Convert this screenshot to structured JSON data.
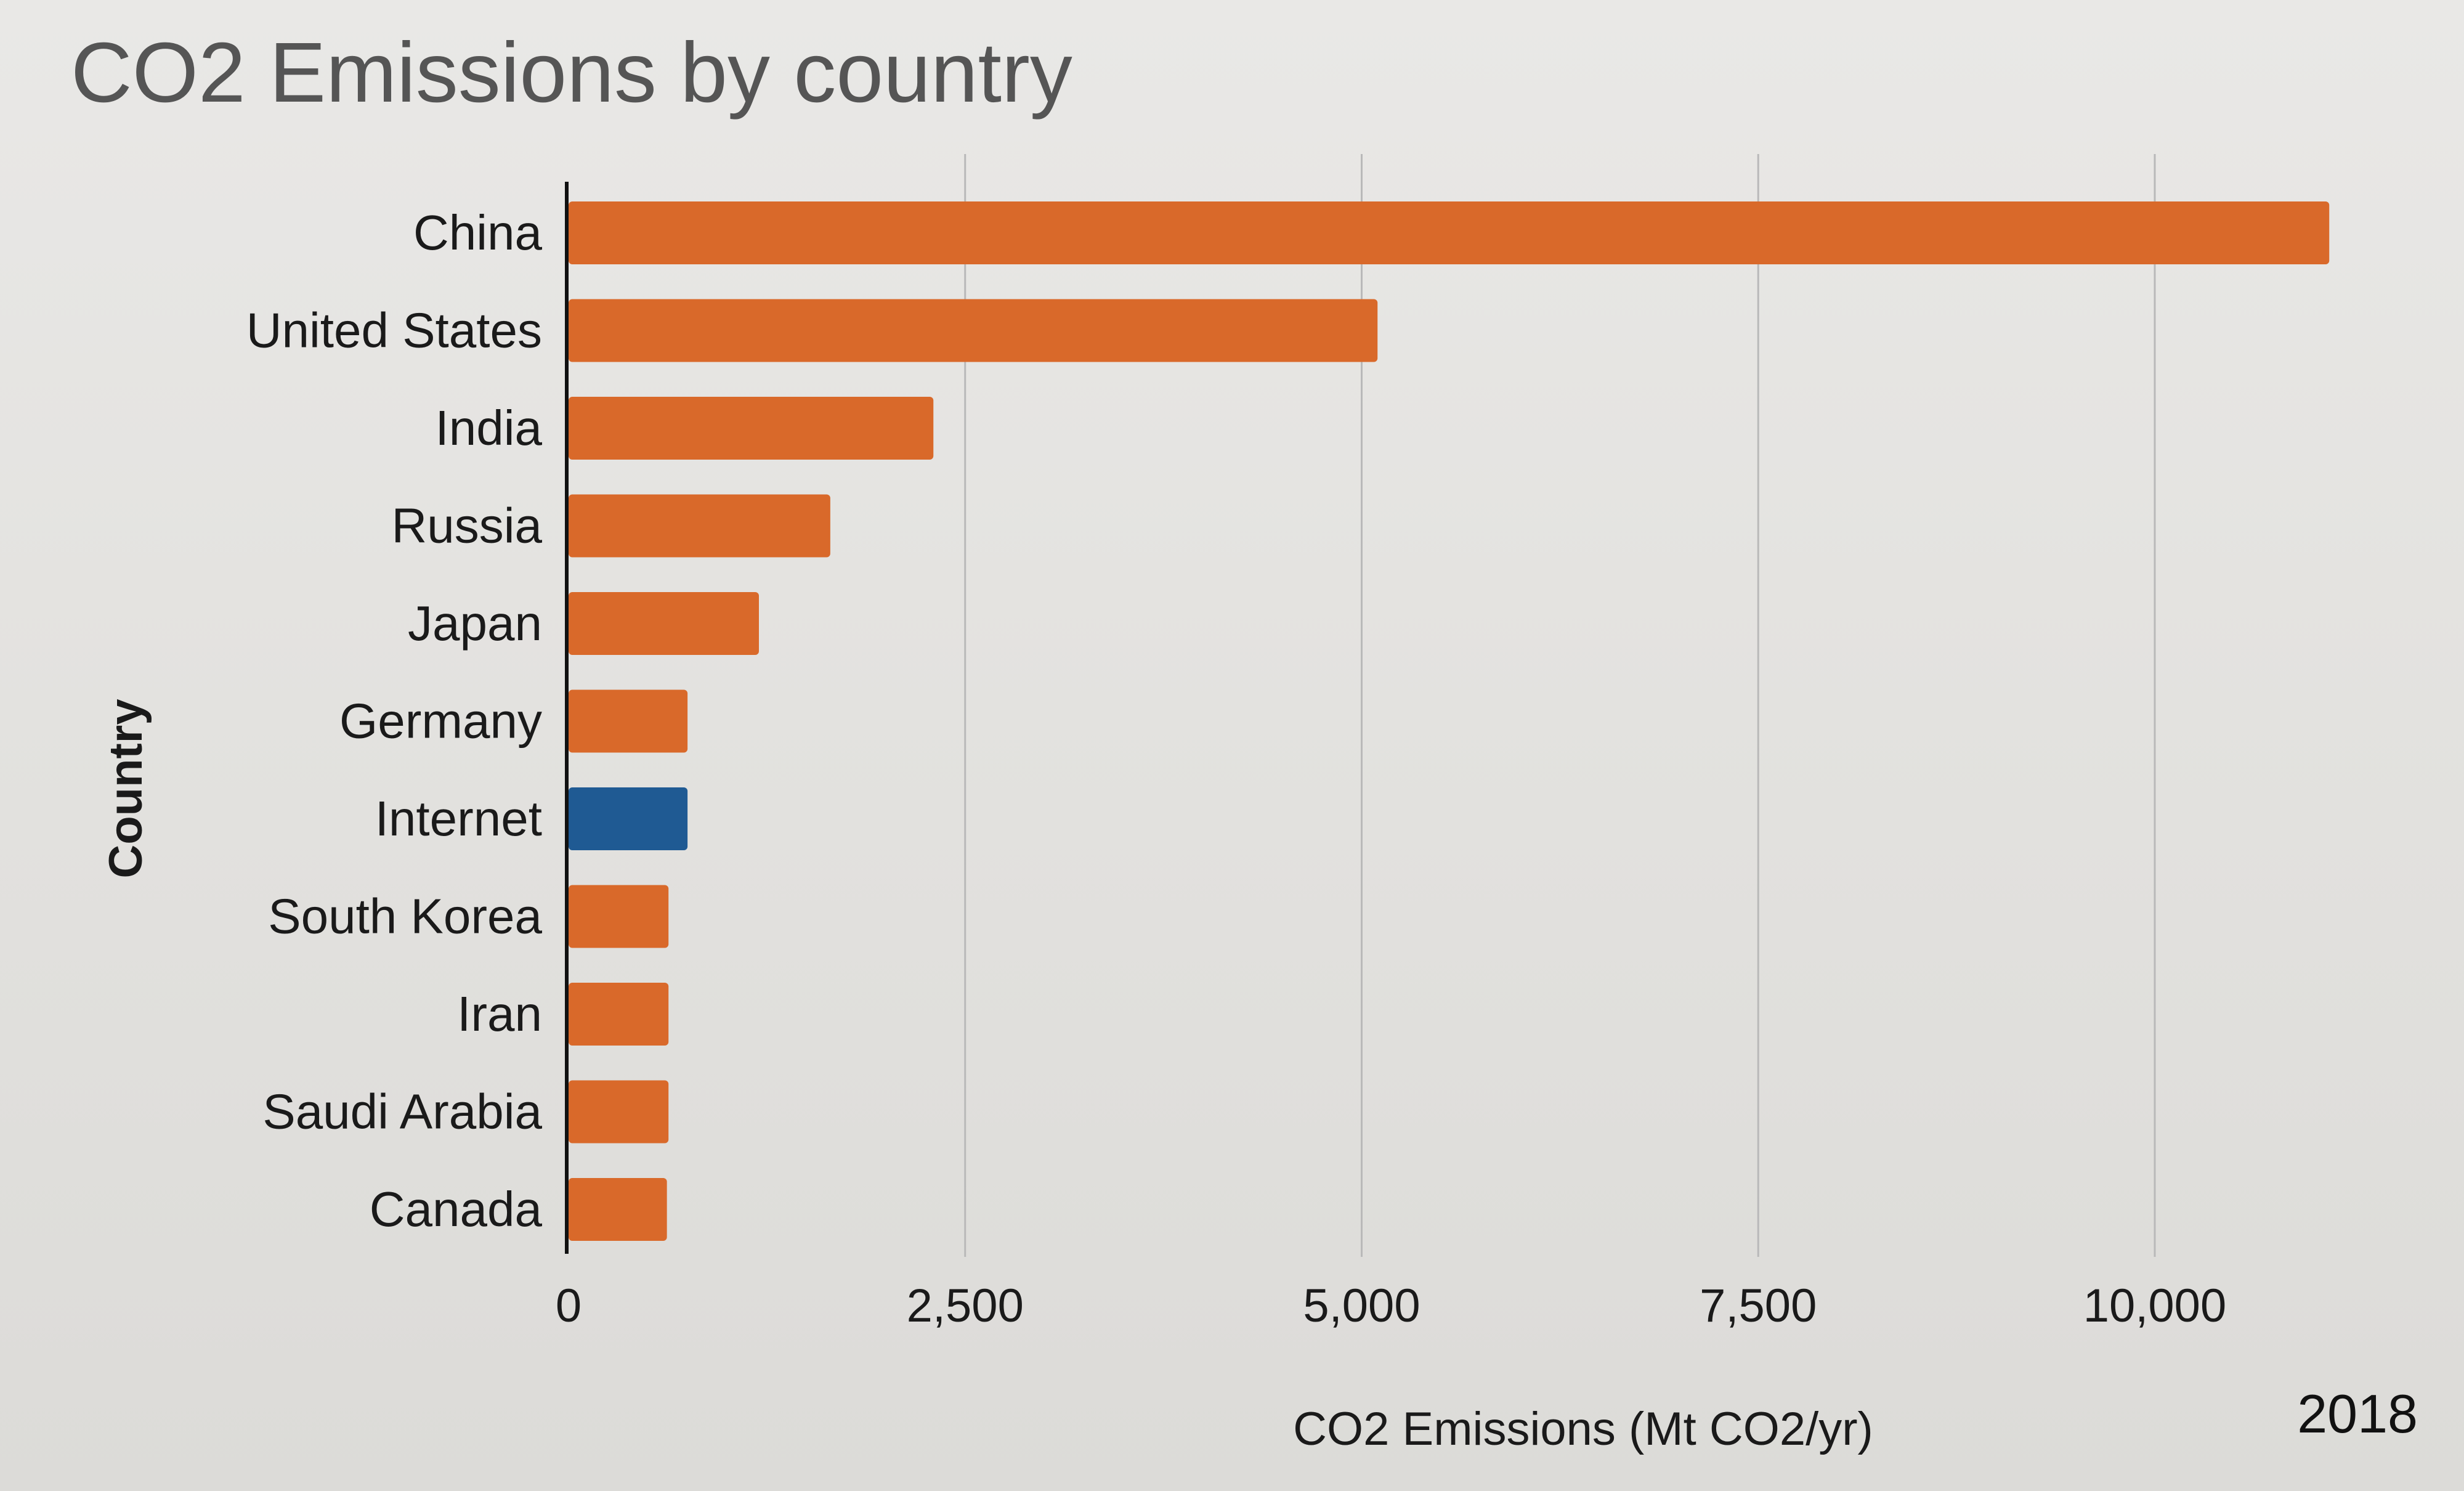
{
  "chart_data": {
    "type": "bar",
    "orientation": "horizontal",
    "title": "CO2 Emissions by country",
    "xlabel": "CO2 Emissions (Mt CO2/yr)",
    "ylabel": "Country",
    "categories": [
      "China",
      "United States",
      "India",
      "Russia",
      "Japan",
      "Germany",
      "Internet",
      "South Korea",
      "Iran",
      "Saudi Arabia",
      "Canada"
    ],
    "values": [
      11100,
      5100,
      2300,
      1650,
      1200,
      750,
      750,
      630,
      630,
      630,
      620
    ],
    "xlim": [
      0,
      11100
    ],
    "xticks": [
      0,
      2500,
      5000,
      7500,
      10000
    ],
    "xtick_labels": [
      "0",
      "2,500",
      "5,000",
      "7,500",
      "10,000"
    ],
    "grid": true,
    "colors": {
      "default": "#d9692a",
      "highlight": "#1f5a93",
      "highlight_category": "Internet"
    }
  },
  "note": "2018"
}
